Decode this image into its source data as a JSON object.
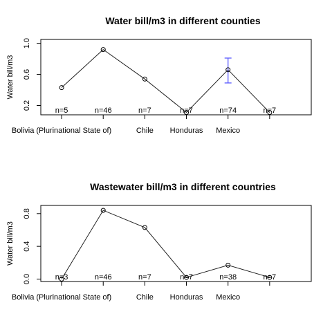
{
  "chart_data": [
    {
      "type": "line",
      "title": "Water bill/m3 in different counties",
      "ylabel": "Water bill/m3",
      "xlabel": "",
      "categories": [
        "Bolivia (Plurinational State of)",
        "",
        "Chile",
        "Honduras",
        "Mexico",
        ""
      ],
      "y": [
        0.43,
        0.92,
        0.54,
        0.11,
        0.66,
        0.11
      ],
      "n_labels": [
        "n=5",
        "n=46",
        "n=7",
        "n=7",
        "n=74",
        "n=7"
      ],
      "error_bars": [
        {
          "index": 4,
          "low": 0.49,
          "high": 0.81
        }
      ],
      "yticks": [
        0.2,
        0.6,
        1.0
      ],
      "yticklabels": [
        "0.2",
        "0.6",
        "1.0"
      ],
      "ylim": [
        0.08,
        1.05
      ],
      "xlim": [
        0.5,
        7.0
      ],
      "grid": false,
      "error_color": "#5a5aff"
    },
    {
      "type": "line",
      "title": "Wastewater bill/m3 in different countries",
      "ylabel": "Water bill/m3",
      "xlabel": "",
      "categories": [
        "Bolivia (Plurinational State of)",
        "",
        "Chile",
        "Honduras",
        "Mexico",
        ""
      ],
      "y": [
        0.0,
        0.84,
        0.63,
        0.02,
        0.17,
        0.02
      ],
      "n_labels": [
        "n=3",
        "n=46",
        "n=7",
        "n=7",
        "n=38",
        "n=7"
      ],
      "error_bars": [],
      "yticks": [
        0.0,
        0.4,
        0.8
      ],
      "yticklabels": [
        "0.0",
        "0.4",
        "0.8"
      ],
      "ylim": [
        -0.03,
        0.9
      ],
      "xlim": [
        0.5,
        7.0
      ],
      "grid": false,
      "error_color": "#5a5aff"
    }
  ]
}
